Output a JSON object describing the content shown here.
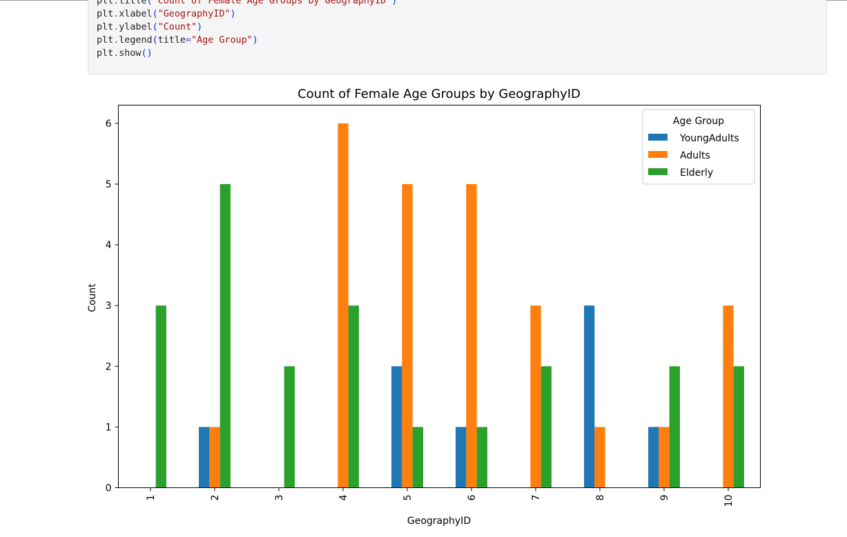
{
  "code_cell": {
    "lines": [
      {
        "obj": "plt",
        "fn": "title",
        "arg_name": "",
        "arg": "\"Count of Female Age Groups by GeographyID\""
      },
      {
        "obj": "plt",
        "fn": "xlabel",
        "arg_name": "",
        "arg": "\"GeographyID\""
      },
      {
        "obj": "plt",
        "fn": "ylabel",
        "arg_name": "",
        "arg": "\"Count\""
      },
      {
        "obj": "plt",
        "fn": "legend",
        "arg_name": "title",
        "arg": "\"Age Group\""
      },
      {
        "obj": "plt",
        "fn": "show",
        "arg_name": "",
        "arg": ""
      }
    ]
  },
  "chart_data": {
    "type": "bar",
    "title": "Count of Female Age Groups by GeographyID",
    "xlabel": "GeographyID",
    "ylabel": "Count",
    "ylim": [
      0,
      6.3
    ],
    "yticks": [
      0,
      1,
      2,
      3,
      4,
      5,
      6
    ],
    "categories": [
      "1",
      "2",
      "3",
      "4",
      "5",
      "6",
      "7",
      "8",
      "9",
      "10"
    ],
    "x_tick_rotation": "vertical",
    "legend": {
      "title": "Age Group",
      "placement": "top-right"
    },
    "grid": false,
    "series": [
      {
        "name": "YoungAdults",
        "color": "#1f77b4",
        "values": [
          0,
          1,
          0,
          0,
          2,
          1,
          0,
          3,
          1,
          0
        ]
      },
      {
        "name": "Adults",
        "color": "#ff7f0e",
        "values": [
          0,
          1,
          0,
          6,
          5,
          5,
          3,
          1,
          1,
          3
        ]
      },
      {
        "name": "Elderly",
        "color": "#2ca02c",
        "values": [
          3,
          5,
          2,
          3,
          1,
          1,
          2,
          0,
          2,
          2
        ]
      }
    ]
  }
}
